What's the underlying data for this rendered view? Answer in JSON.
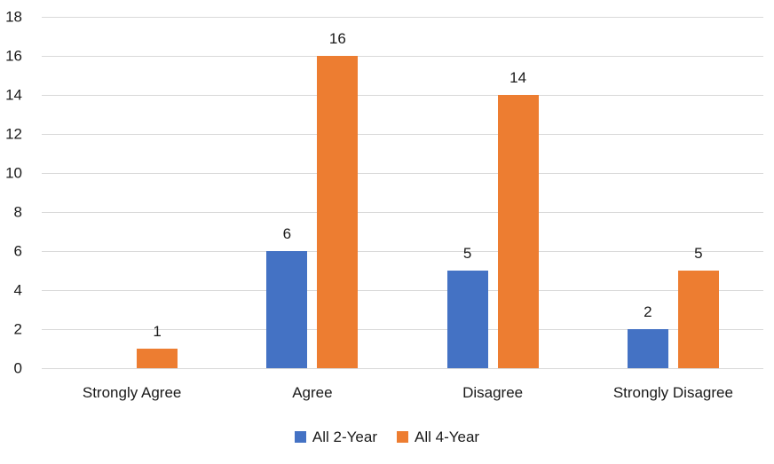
{
  "chart_data": {
    "type": "bar",
    "title": "",
    "xlabel": "",
    "ylabel": "",
    "categories": [
      "Strongly Agree",
      "Agree",
      "Disagree",
      "Strongly Disagree"
    ],
    "series": [
      {
        "name": "All 2-Year",
        "color": "#4472C4",
        "values": [
          0,
          6,
          5,
          2
        ],
        "labels": [
          "",
          "6",
          "5",
          "2"
        ]
      },
      {
        "name": "All 4-Year",
        "color": "#ED7D31",
        "values": [
          1,
          16,
          14,
          5
        ],
        "labels": [
          "1",
          "16",
          "14",
          "5"
        ]
      }
    ],
    "ylim": [
      0,
      18
    ],
    "yticks": [
      0,
      2,
      4,
      6,
      8,
      10,
      12,
      14,
      16,
      18
    ],
    "grid": true,
    "gridline_color": "#D9D9D9",
    "axis_line_color": "#D9D9D9",
    "text_color": "#1a1a1a",
    "legend_position": "bottom"
  }
}
